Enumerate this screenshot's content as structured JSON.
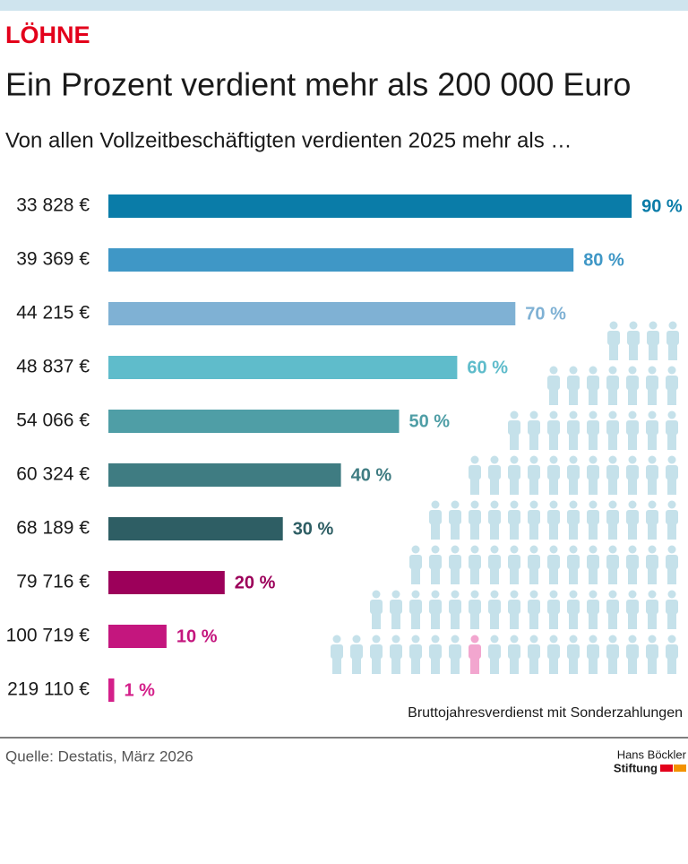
{
  "chart_data": {
    "type": "bar",
    "orientation": "horizontal",
    "kicker": "LÖHNE",
    "title": "Ein Prozent verdient mehr als 200 000 Euro",
    "subtitle": "Von allen Vollzeitbeschäftigten verdienten 2025 mehr als …",
    "categories": [
      "33 828 €",
      "39 369 €",
      "44 215 €",
      "48 837 €",
      "54 066 €",
      "60 324 €",
      "68 189 €",
      "79 716 €",
      "100 719 €",
      "219 110 €"
    ],
    "values": [
      90,
      80,
      70,
      60,
      50,
      40,
      30,
      20,
      10,
      1
    ],
    "value_labels": [
      "90 %",
      "80 %",
      "70 %",
      "60 %",
      "50 %",
      "40 %",
      "30 %",
      "20 %",
      "10 %",
      "1 %"
    ],
    "colors": [
      "#0a7ca8",
      "#3f97c6",
      "#7fb1d4",
      "#5fbccb",
      "#4f9ea6",
      "#3f7c82",
      "#2e5e64",
      "#9c005a",
      "#c4167e",
      "#d4208a"
    ],
    "note": "Bruttojahresverdienst mit Sonderzahlungen",
    "source": "Quelle: Destatis, März 2026",
    "logo": [
      "Hans Böckler",
      "Stiftung"
    ]
  }
}
